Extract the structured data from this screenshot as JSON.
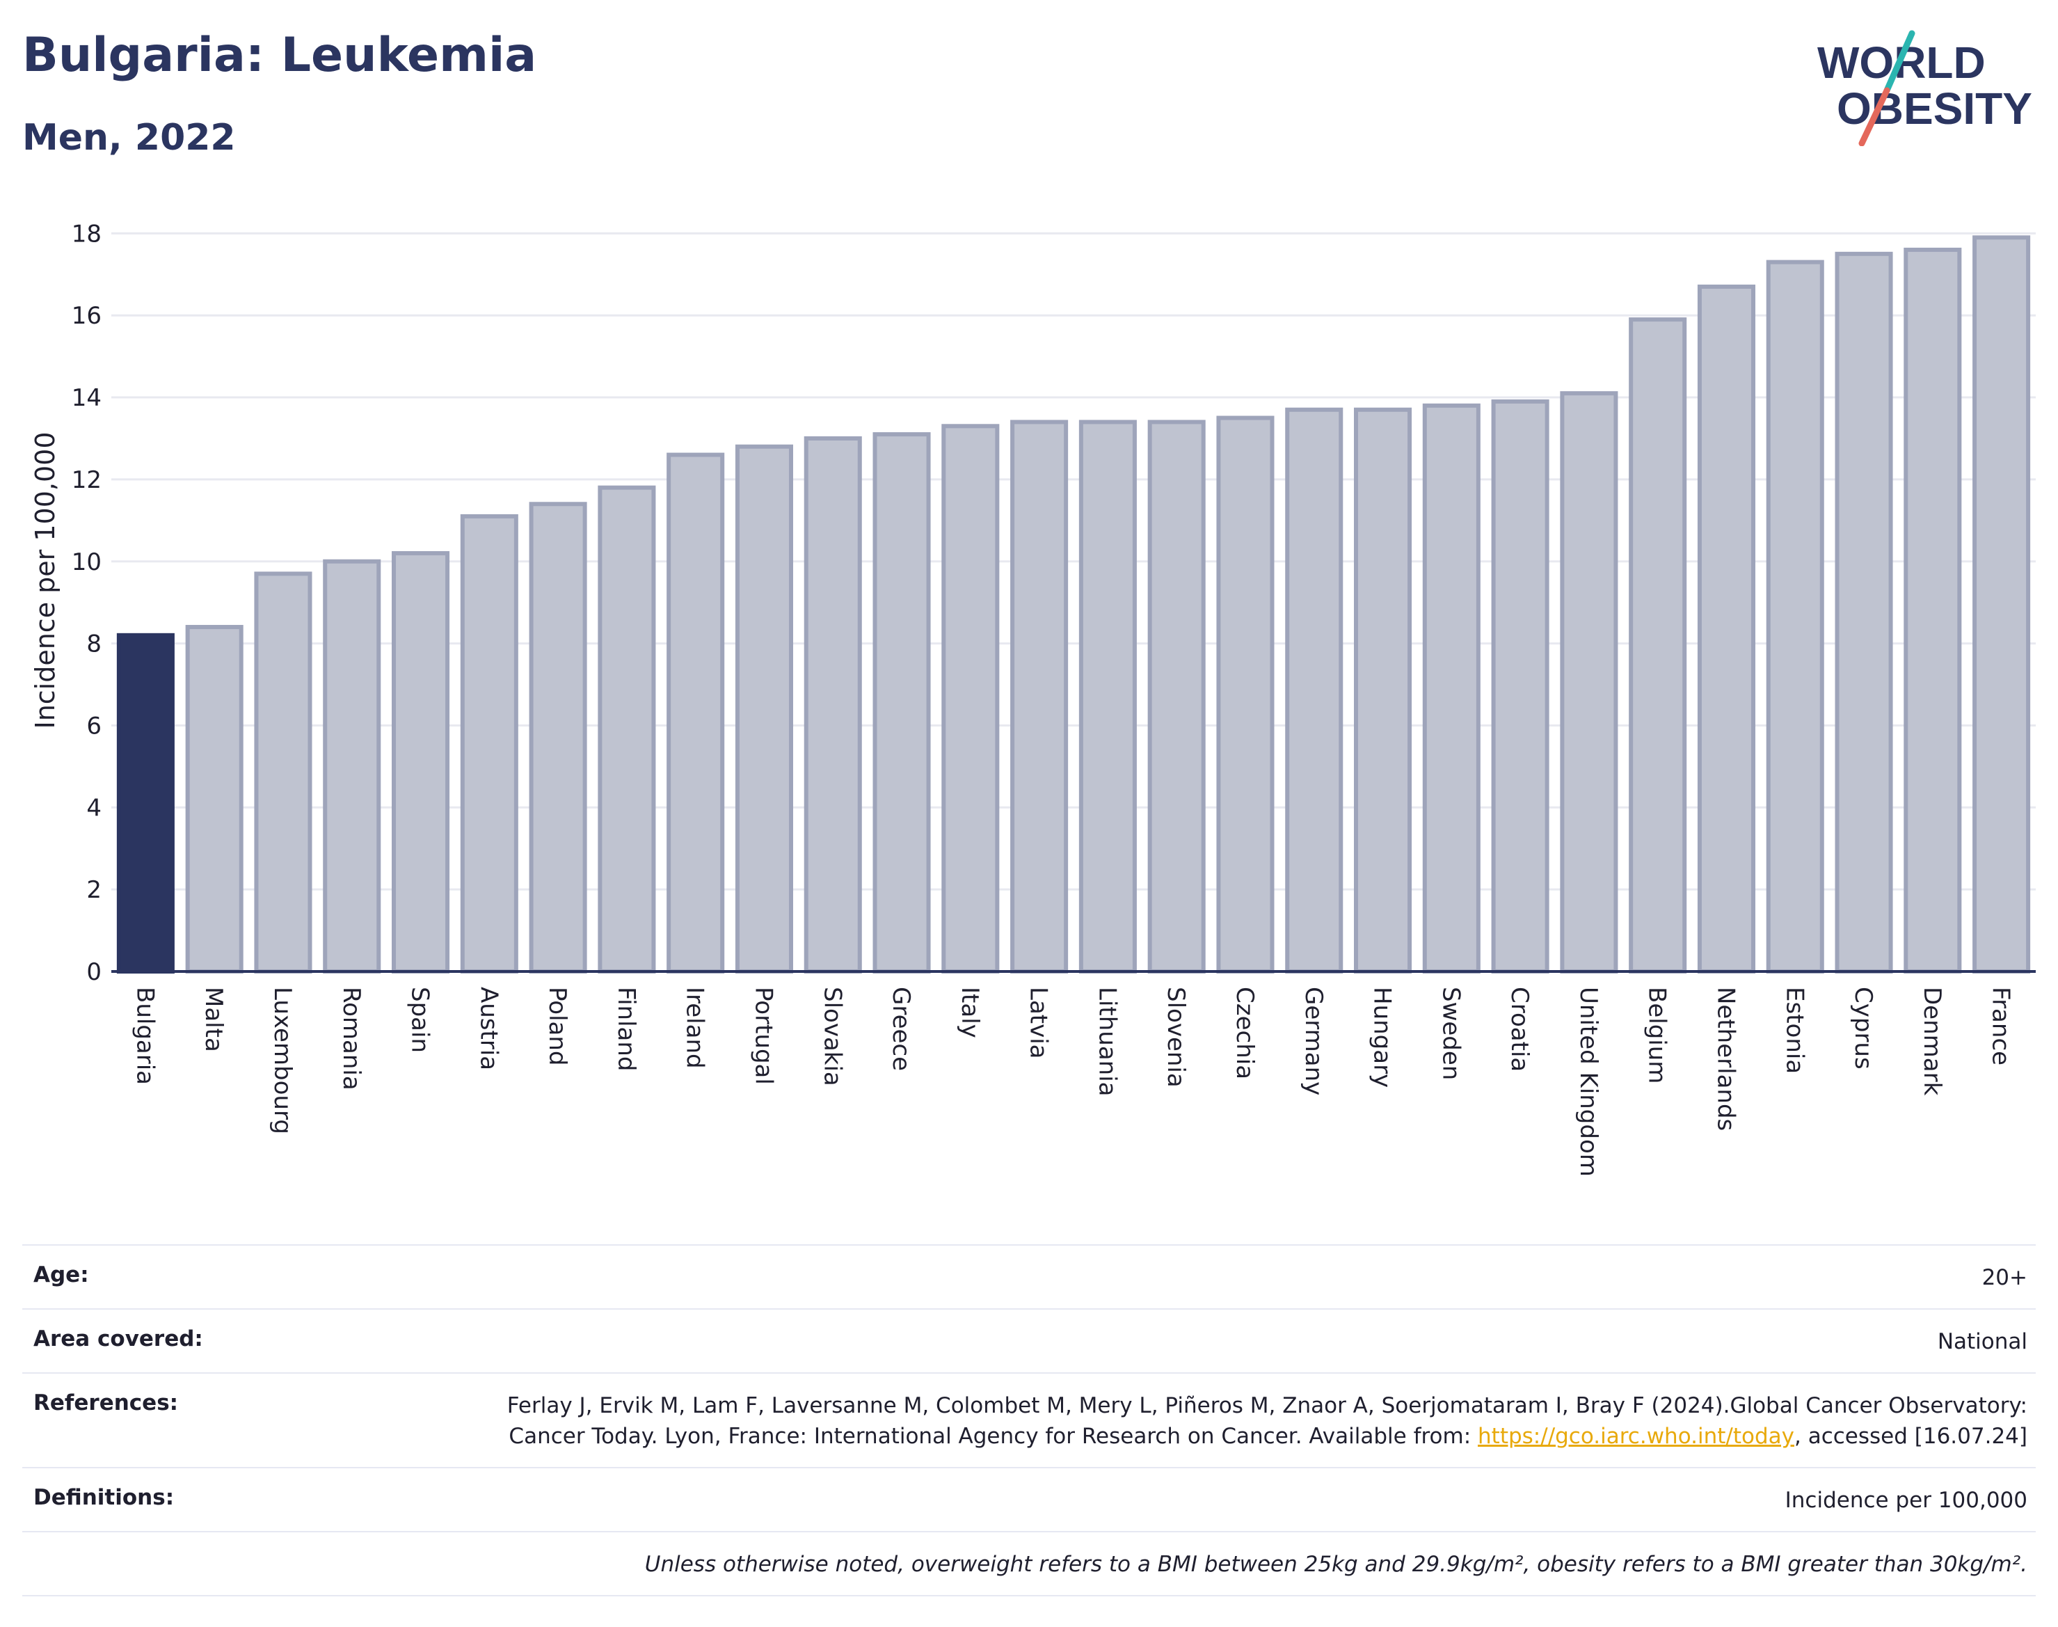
{
  "header": {
    "title": "Bulgaria: Leukemia",
    "subtitle": "Men, 2022"
  },
  "logo": {
    "line1": "WORLD",
    "line2": "OBESITY",
    "colors": {
      "text": "#2b3560",
      "slash_teal": "#2bb5b0",
      "slash_coral": "#e4685b"
    }
  },
  "chart_data": {
    "type": "bar",
    "title": "Bulgaria: Leukemia",
    "subtitle": "Men, 2022",
    "ylabel": "Incidence per 100,000",
    "xlabel": "",
    "ylim": [
      0,
      18.6
    ],
    "yticks": [
      0,
      2,
      4,
      6,
      8,
      10,
      12,
      14,
      16,
      18
    ],
    "grid": true,
    "highlight": "Bulgaria",
    "colors": {
      "highlight": "#2b3560",
      "bar": "#bfc3d0",
      "bar_edge": "#9ea4ba",
      "grid": "#e8e9f0",
      "axis": "#2b3560"
    },
    "categories": [
      "Bulgaria",
      "Malta",
      "Luxembourg",
      "Romania",
      "Spain",
      "Austria",
      "Poland",
      "Finland",
      "Ireland",
      "Portugal",
      "Slovakia",
      "Greece",
      "Italy",
      "Latvia",
      "Lithuania",
      "Slovenia",
      "Czechia",
      "Germany",
      "Hungary",
      "Sweden",
      "Croatia",
      "United Kingdom",
      "Belgium",
      "Netherlands",
      "Estonia",
      "Cyprus",
      "Denmark",
      "France"
    ],
    "values": [
      8.2,
      8.4,
      9.7,
      10.0,
      10.2,
      11.1,
      11.4,
      11.8,
      12.6,
      12.8,
      13.0,
      13.1,
      13.3,
      13.4,
      13.4,
      13.4,
      13.5,
      13.7,
      13.7,
      13.8,
      13.9,
      14.1,
      15.9,
      16.7,
      17.3,
      17.5,
      17.6,
      17.9
    ]
  },
  "meta": {
    "age_label": "Age:",
    "age_value": "20+",
    "area_label": "Area covered:",
    "area_value": "National",
    "references_label": "References:",
    "references_text": "Ferlay J, Ervik M, Lam F, Laversanne M, Colombet M, Mery L, Piñeros M, Znaor A, Soerjomataram I, Bray F (2024).Global Cancer Observatory: Cancer Today. Lyon, France: International Agency for Research on Cancer. Available from: ",
    "references_link": "https://gco.iarc.who.int/today",
    "references_suffix": ", accessed [16.07.24]",
    "definitions_label": "Definitions:",
    "definitions_value": "Incidence per 100,000",
    "note": "Unless otherwise noted, overweight refers to a BMI between 25kg and 29.9kg/m², obesity refers to a BMI greater than 30kg/m²."
  }
}
